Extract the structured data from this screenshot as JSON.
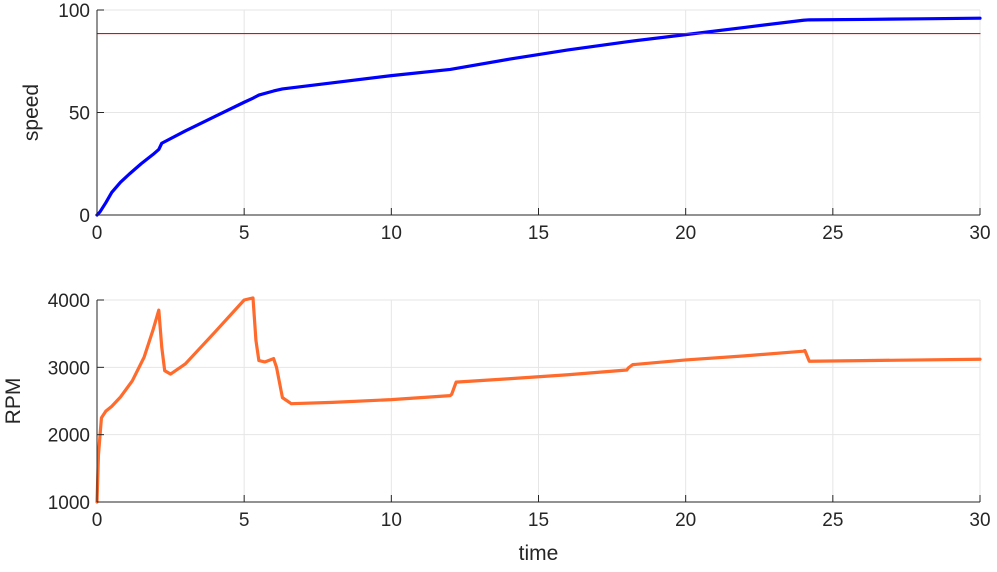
{
  "chart_data": [
    {
      "type": "line",
      "title": "",
      "xlabel": "",
      "ylabel": "speed",
      "xlim": [
        0,
        30
      ],
      "ylim": [
        0,
        100
      ],
      "xticks": [
        "0",
        "5",
        "10",
        "15",
        "20",
        "25",
        "30"
      ],
      "yticks": [
        "0",
        "50",
        "100"
      ],
      "grid": true,
      "series": [
        {
          "color": "#0000ff",
          "x": [
            0,
            0.1,
            0.3,
            0.5,
            0.8,
            1.1,
            1.5,
            1.9,
            2.1,
            2.2,
            3,
            4,
            5,
            5.3,
            5.5,
            6,
            6.3,
            8,
            10,
            12,
            14,
            16,
            18,
            20,
            22,
            24,
            24.2,
            26,
            28,
            30
          ],
          "y": [
            0,
            1.5,
            6,
            11,
            16,
            20,
            25,
            29.5,
            32,
            35,
            41,
            48,
            55,
            57,
            58.5,
            60.5,
            61.5,
            64.5,
            68,
            71,
            76,
            80.5,
            84.5,
            88,
            91.5,
            95,
            95.2,
            95.4,
            95.7,
            96
          ]
        },
        {
          "color": "#ff0000",
          "x": [
            0,
            30
          ],
          "y": [
            88.5,
            88.5
          ]
        }
      ]
    },
    {
      "type": "line",
      "title": "",
      "xlabel": "time",
      "ylabel": "RPM",
      "xlim": [
        0,
        30
      ],
      "ylim": [
        1000,
        4000
      ],
      "xticks": [
        "0",
        "5",
        "10",
        "15",
        "20",
        "25",
        "30"
      ],
      "yticks": [
        "1000",
        "2000",
        "3000",
        "4000"
      ],
      "grid": true,
      "series": [
        {
          "color": "#ff6b2c",
          "x": [
            0,
            0.05,
            0.15,
            0.3,
            0.5,
            0.8,
            1.2,
            1.6,
            1.9,
            2.1,
            2.2,
            2.3,
            2.5,
            3,
            4,
            5,
            5.3,
            5.4,
            5.5,
            5.7,
            6,
            6.1,
            6.3,
            6.6,
            8,
            10,
            12,
            12.05,
            12.2,
            14,
            16,
            18,
            18.05,
            18.2,
            20,
            22,
            24,
            24.05,
            24.2,
            26,
            28,
            30
          ],
          "y": [
            1000,
            1700,
            2250,
            2350,
            2420,
            2560,
            2800,
            3150,
            3550,
            3850,
            3300,
            2950,
            2900,
            3050,
            3520,
            4000,
            4030,
            3400,
            3100,
            3080,
            3130,
            3000,
            2550,
            2460,
            2480,
            2520,
            2580,
            2600,
            2780,
            2830,
            2890,
            2960,
            2990,
            3040,
            3110,
            3170,
            3240,
            3250,
            3090,
            3100,
            3110,
            3120
          ]
        }
      ]
    }
  ]
}
